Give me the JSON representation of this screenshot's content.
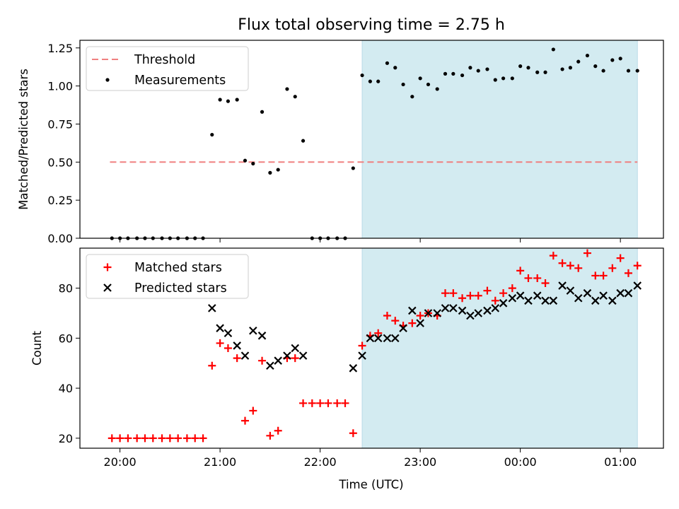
{
  "title": "Flux total observing time = 2.75 h",
  "colors": {
    "highlight": "#d3ebf1",
    "threshold": "#f08080",
    "measurement": "#000000",
    "matched": "#ff0000",
    "predicted": "#000000"
  },
  "xaxis": {
    "label": "Time (UTC)",
    "ticks": [
      "20:00",
      "21:00",
      "22:00",
      "23:00",
      "00:00",
      "01:00"
    ]
  },
  "chart_data": [
    {
      "type": "scatter",
      "title": "Flux total observing time = 2.75 h",
      "xlabel": "",
      "ylabel": "Matched/Predicted stars",
      "x_unit": "hours since 20:00 UTC",
      "xlim": [
        -0.4,
        5.43
      ],
      "ylim": [
        0,
        1.3
      ],
      "yticks": [
        "0.00",
        "0.25",
        "0.50",
        "0.75",
        "1.00",
        "1.25"
      ],
      "highlight_x": [
        2.42,
        5.17
      ],
      "threshold": 0.5,
      "threshold_range": [
        -0.1,
        5.17
      ],
      "legend": [
        "Threshold",
        "Measurements"
      ],
      "legend_position": "top-left",
      "series": [
        {
          "name": "Measurements",
          "x": [
            -0.08,
            0.0,
            0.08,
            0.17,
            0.25,
            0.33,
            0.42,
            0.5,
            0.58,
            0.67,
            0.75,
            0.83,
            0.92,
            1.0,
            1.08,
            1.17,
            1.25,
            1.33,
            1.42,
            1.5,
            1.58,
            1.67,
            1.75,
            1.83,
            1.92,
            2.0,
            2.08,
            2.17,
            2.25,
            2.33,
            2.42,
            2.5,
            2.58,
            2.67,
            2.75,
            2.83,
            2.92,
            3.0,
            3.08,
            3.17,
            3.25,
            3.33,
            3.42,
            3.5,
            3.58,
            3.67,
            3.75,
            3.83,
            3.92,
            4.0,
            4.08,
            4.17,
            4.25,
            4.33,
            4.42,
            4.5,
            4.58,
            4.67,
            4.75,
            4.83,
            4.92,
            5.0,
            5.08,
            5.17
          ],
          "y": [
            0,
            0,
            0,
            0,
            0,
            0,
            0,
            0,
            0,
            0,
            0,
            0,
            0.68,
            0.91,
            0.9,
            0.91,
            0.51,
            0.49,
            0.83,
            0.43,
            0.45,
            0.98,
            0.93,
            0.64,
            0,
            0,
            0,
            0,
            0,
            0.46,
            1.07,
            1.03,
            1.03,
            1.15,
            1.12,
            1.01,
            0.93,
            1.05,
            1.01,
            0.98,
            1.08,
            1.08,
            1.07,
            1.12,
            1.1,
            1.11,
            1.04,
            1.05,
            1.05,
            1.13,
            1.12,
            1.09,
            1.09,
            1.24,
            1.11,
            1.12,
            1.16,
            1.2,
            1.13,
            1.1,
            1.17,
            1.18,
            1.1,
            1.1
          ]
        }
      ]
    },
    {
      "type": "scatter",
      "title": "",
      "xlabel": "Time (UTC)",
      "ylabel": "Count",
      "x_unit": "hours since 20:00 UTC",
      "xlim": [
        -0.4,
        5.43
      ],
      "ylim": [
        16,
        96
      ],
      "yticks": [
        "20",
        "40",
        "60",
        "80"
      ],
      "highlight_x": [
        2.42,
        5.17
      ],
      "legend": [
        "Matched stars",
        "Predicted stars"
      ],
      "legend_position": "top-left",
      "series": [
        {
          "name": "Matched stars",
          "x": [
            -0.08,
            0.0,
            0.08,
            0.17,
            0.25,
            0.33,
            0.42,
            0.5,
            0.58,
            0.67,
            0.75,
            0.83,
            0.92,
            1.0,
            1.08,
            1.17,
            1.25,
            1.33,
            1.42,
            1.5,
            1.58,
            1.67,
            1.75,
            1.83,
            1.92,
            2.0,
            2.08,
            2.17,
            2.25,
            2.33,
            2.42,
            2.5,
            2.58,
            2.67,
            2.75,
            2.83,
            2.92,
            3.0,
            3.08,
            3.17,
            3.25,
            3.33,
            3.42,
            3.5,
            3.58,
            3.67,
            3.75,
            3.83,
            3.92,
            4.0,
            4.08,
            4.17,
            4.25,
            4.33,
            4.42,
            4.5,
            4.58,
            4.67,
            4.75,
            4.83,
            4.92,
            5.0,
            5.08,
            5.17
          ],
          "y": [
            20,
            20,
            20,
            20,
            20,
            20,
            20,
            20,
            20,
            20,
            20,
            20,
            49,
            58,
            56,
            52,
            27,
            31,
            51,
            21,
            23,
            52,
            52,
            34,
            34,
            34,
            34,
            34,
            34,
            22,
            57,
            61,
            62,
            69,
            67,
            65,
            66,
            69,
            70,
            69,
            78,
            78,
            76,
            77,
            77,
            79,
            75,
            78,
            80,
            87,
            84,
            84,
            82,
            93,
            90,
            89,
            88,
            94,
            85,
            85,
            88,
            92,
            86,
            89
          ]
        },
        {
          "name": "Predicted stars",
          "x": [
            0.92,
            1.0,
            1.08,
            1.17,
            1.25,
            1.33,
            1.42,
            1.5,
            1.58,
            1.67,
            1.75,
            1.83,
            2.33,
            2.42,
            2.5,
            2.58,
            2.67,
            2.75,
            2.83,
            2.92,
            3.0,
            3.08,
            3.17,
            3.25,
            3.33,
            3.42,
            3.5,
            3.58,
            3.67,
            3.75,
            3.83,
            3.92,
            4.0,
            4.08,
            4.17,
            4.25,
            4.33,
            4.42,
            4.5,
            4.58,
            4.67,
            4.75,
            4.83,
            4.92,
            5.0,
            5.08,
            5.17
          ],
          "y": [
            72,
            64,
            62,
            57,
            53,
            63,
            61,
            49,
            51,
            53,
            56,
            53,
            48,
            53,
            60,
            60,
            60,
            60,
            64,
            71,
            66,
            70,
            70,
            72,
            72,
            71,
            69,
            70,
            71,
            72,
            74,
            76,
            77,
            75,
            77,
            75,
            75,
            81,
            79,
            76,
            78,
            75,
            77,
            75,
            78,
            78,
            81
          ]
        }
      ]
    }
  ]
}
